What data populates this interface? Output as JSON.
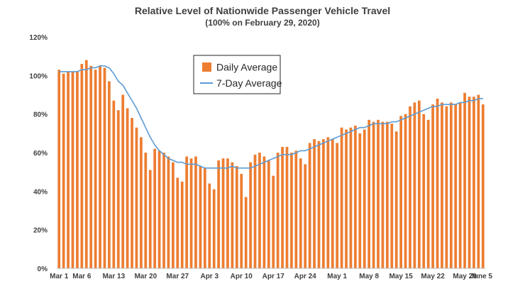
{
  "chart_data": {
    "type": "bar",
    "title": "Relative Level of Nationwide Passenger Vehicle Travel",
    "subtitle": "(100% on February 29, 2020)",
    "xlabel": "",
    "ylabel": "",
    "ylim": [
      0,
      120
    ],
    "y_ticks": [
      "0%",
      "20%",
      "40%",
      "60%",
      "80%",
      "100%",
      "120%"
    ],
    "x_tick_labels": [
      "Mar 1",
      "Mar 6",
      "Mar 13",
      "Mar 20",
      "Mar 27",
      "Apr 3",
      "Apr 10",
      "Apr 17",
      "Apr 24",
      "May 1",
      "May 8",
      "May 15",
      "May 22",
      "May 29",
      "June 5"
    ],
    "x_tick_index": [
      0,
      5,
      12,
      19,
      26,
      33,
      40,
      47,
      54,
      61,
      68,
      75,
      82,
      89,
      96
    ],
    "legend_position": "top-center",
    "grid": false,
    "series": [
      {
        "name": "Daily Average",
        "kind": "bar",
        "color": "#ED7D31",
        "values": [
          103,
          101,
          102,
          102,
          102,
          106,
          108,
          105,
          103,
          105,
          104,
          97,
          87,
          82,
          90,
          83,
          78,
          73,
          68,
          60,
          51,
          62,
          61,
          60,
          58,
          55,
          47,
          45,
          58,
          57,
          58,
          53,
          52,
          44,
          41,
          56,
          57,
          57,
          55,
          53,
          49,
          37,
          55,
          59,
          60,
          58,
          56,
          48,
          60,
          63,
          63,
          60,
          61,
          57,
          54,
          65,
          67,
          66,
          67,
          68,
          67,
          65,
          73,
          72,
          73,
          74,
          70,
          72,
          77,
          76,
          77,
          76,
          76,
          75,
          71,
          79,
          80,
          84,
          86,
          87,
          80,
          77,
          85,
          88,
          86,
          84,
          86,
          85,
          86,
          91,
          89,
          89,
          90,
          85
        ]
      },
      {
        "name": "7-Day Average",
        "kind": "line",
        "color": "#5B9BD5",
        "values": [
          102,
          102,
          102,
          102,
          102,
          103,
          103,
          104,
          104,
          105,
          105,
          104,
          101,
          97,
          95,
          91,
          87,
          83,
          78,
          73,
          68,
          64,
          61,
          59,
          57,
          56,
          55,
          55,
          54,
          54,
          54,
          53,
          52,
          52,
          52,
          52,
          52,
          52,
          53,
          52,
          52,
          52,
          52,
          53,
          54,
          55,
          56,
          57,
          58,
          59,
          59,
          59,
          60,
          61,
          61,
          62,
          63,
          64,
          65,
          66,
          67,
          68,
          69,
          70,
          71,
          72,
          73,
          73,
          74,
          75,
          75,
          75,
          75,
          76,
          76,
          77,
          78,
          79,
          80,
          81,
          82,
          83,
          84,
          84,
          85,
          85,
          85,
          85,
          86,
          86,
          87,
          87,
          88,
          88
        ]
      }
    ]
  }
}
